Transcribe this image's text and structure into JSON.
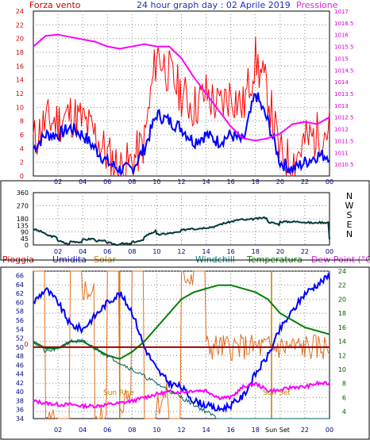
{
  "header": {
    "left_label": "Forza vento",
    "title": "24 hour graph day : 02 Aprile 2019",
    "right_label": "Pressione"
  },
  "labels": {
    "sun_rise": "Sun Rise",
    "sun_set": "Sun Set",
    "sun_set_axis": "Sun Set"
  },
  "legend": [
    {
      "key": "pioggia",
      "label": "Pioggia",
      "color": "#d00000"
    },
    {
      "key": "umidita",
      "label": "Umidita",
      "color": "#2020c0"
    },
    {
      "key": "solar",
      "label": "Solar",
      "color": "#c08000"
    },
    {
      "key": "windchill",
      "label": "Windchill",
      "color": "#008080"
    },
    {
      "key": "temperatura",
      "label": "Temperatura",
      "color": "#008000"
    },
    {
      "key": "dewpoint",
      "label": "Dew Point (°C)",
      "color": "#e020e0"
    }
  ],
  "colors": {
    "wind_speed": "#ff0000",
    "wind_avg": "#0000ff",
    "pressure": "#ff00ff",
    "direction": "#003838",
    "humidity": "#0000ff",
    "temperature": "#008000",
    "dewpoint": "#ff00ff",
    "solar": "#e07020",
    "rain": "#a00000",
    "windchill": "#006060",
    "sun_marker": "#c08000"
  },
  "chart_data": [
    {
      "type": "line",
      "title": "24 hour graph day : 02 Aprile 2019",
      "x_ticks": [
        "02",
        "04",
        "06",
        "08",
        "10",
        "12",
        "14",
        "16",
        "18",
        "20",
        "22",
        "00"
      ],
      "left_axis": {
        "name": "Forza vento",
        "ylim": [
          0,
          24
        ],
        "ticks": [
          "0",
          "2",
          "4",
          "6",
          "8",
          "10",
          "12",
          "14",
          "16",
          "18",
          "20",
          "22",
          "24"
        ]
      },
      "right_axis": {
        "name": "Pressione",
        "ylim": [
          1010,
          1017
        ],
        "ticks": [
          "1010.5",
          "1011",
          "1011.5",
          "1012",
          "1012.5",
          "1013",
          "1013.5",
          "1014",
          "1014.5",
          "1015",
          "1015.5",
          "1016",
          "1016.5",
          "1017"
        ]
      },
      "series": [
        {
          "name": "Forza vento",
          "axis": "left",
          "hours": [
            0,
            1,
            2,
            3,
            4,
            5,
            6,
            7,
            8,
            9,
            10,
            11,
            12,
            13,
            14,
            15,
            16,
            17,
            18,
            19,
            20,
            21,
            22,
            23,
            24
          ],
          "values": [
            5,
            8,
            8,
            9,
            8,
            6,
            3,
            1,
            2,
            5,
            18,
            15,
            12,
            10,
            12,
            10,
            12,
            10,
            17,
            12,
            3,
            2,
            5,
            6,
            7
          ]
        },
        {
          "name": "Wind average",
          "axis": "left",
          "hours": [
            0,
            1,
            2,
            3,
            4,
            5,
            6,
            7,
            8,
            9,
            10,
            11,
            12,
            13,
            14,
            15,
            16,
            17,
            18,
            19,
            20,
            21,
            22,
            23,
            24
          ],
          "values": [
            4,
            6,
            6,
            7,
            6,
            4,
            2,
            1,
            1,
            4,
            9,
            8,
            7,
            5,
            6,
            5,
            6,
            5,
            12,
            8,
            2,
            1,
            2,
            3,
            3
          ]
        },
        {
          "name": "Pressione",
          "axis": "right",
          "hours": [
            0,
            1,
            2,
            3,
            4,
            5,
            6,
            7,
            8,
            9,
            10,
            11,
            12,
            13,
            14,
            15,
            16,
            17,
            18,
            19,
            20,
            21,
            22,
            23,
            24
          ],
          "values": [
            1015.5,
            1015.95,
            1016,
            1015.9,
            1015.8,
            1015.7,
            1015.5,
            1015.4,
            1015.5,
            1015.6,
            1015.5,
            1015.5,
            1015,
            1014.2,
            1013.5,
            1012.8,
            1012.1,
            1011.6,
            1011.5,
            1011.6,
            1011.8,
            1012.2,
            1012.3,
            1012.2,
            1012.5
          ]
        }
      ]
    },
    {
      "type": "line",
      "x_ticks": [
        "02",
        "04",
        "06",
        "08",
        "10",
        "12",
        "14",
        "16",
        "18",
        "20",
        "22",
        "00"
      ],
      "left_axis": {
        "ylim": [
          0,
          360
        ],
        "ticks": [
          "0",
          "45",
          "90",
          "135",
          "180",
          "225",
          "270",
          "315",
          "360"
        ]
      },
      "right_axis": {
        "labels": [
          "N",
          "W",
          "S",
          "E",
          "N"
        ]
      },
      "series": [
        {
          "name": "Direzione",
          "hours": [
            0,
            0.5,
            1,
            2,
            3,
            4,
            5,
            6,
            7,
            8,
            9,
            10,
            11,
            12,
            13,
            14,
            15,
            16,
            17,
            18,
            19,
            20,
            21,
            22,
            23,
            23.5,
            24
          ],
          "values": [
            110,
            80,
            60,
            30,
            25,
            35,
            30,
            15,
            10,
            20,
            60,
            70,
            80,
            100,
            110,
            120,
            140,
            160,
            170,
            180,
            160,
            160,
            160,
            155,
            155,
            40,
            60
          ]
        }
      ]
    },
    {
      "type": "line",
      "x_ticks": [
        "02",
        "04",
        "06",
        "08",
        "10",
        "12",
        "14",
        "16",
        "18",
        "20",
        "22",
        "00"
      ],
      "left_axis": {
        "ylim": [
          34,
          67
        ],
        "ticks": [
          "34",
          "36",
          "38",
          "40",
          "42",
          "44",
          "46",
          "48",
          "50",
          "52",
          "54",
          "56",
          "58",
          "60",
          "62",
          "64",
          "66"
        ]
      },
      "right_axis": {
        "ylim": [
          3,
          24
        ],
        "ticks": [
          "4",
          "6",
          "8",
          "10",
          "12",
          "14",
          "16",
          "18",
          "20",
          "22",
          "24"
        ]
      },
      "series": [
        {
          "name": "Umidita",
          "axis": "left",
          "hours": [
            0,
            1,
            2,
            3,
            4,
            5,
            6,
            7,
            8,
            9,
            10,
            11,
            12,
            13,
            14,
            15,
            16,
            17,
            18,
            19,
            20,
            21,
            22,
            23,
            24
          ],
          "values": [
            60,
            63,
            60,
            55,
            54,
            57,
            60,
            62,
            58,
            50,
            45,
            42,
            41,
            38,
            37,
            36,
            37,
            39,
            44,
            48,
            54,
            58,
            62,
            64,
            66
          ]
        },
        {
          "name": "Temperatura",
          "axis": "right",
          "hours": [
            0,
            1,
            2,
            3,
            4,
            5,
            6,
            7,
            8,
            9,
            10,
            11,
            12,
            13,
            14,
            15,
            16,
            17,
            18,
            19,
            20,
            21,
            22,
            23,
            24
          ],
          "values": [
            14,
            13,
            13,
            14,
            14,
            13,
            12,
            11.5,
            12.5,
            14,
            16,
            18,
            20,
            21,
            21.5,
            22,
            22,
            21.5,
            21,
            20,
            18,
            17,
            16,
            15.5,
            15
          ]
        },
        {
          "name": "Dew Point",
          "axis": "right",
          "hours": [
            0,
            1,
            2,
            3,
            4,
            5,
            6,
            7,
            8,
            9,
            10,
            11,
            12,
            13,
            14,
            15,
            16,
            17,
            18,
            19,
            20,
            21,
            22,
            23,
            24
          ],
          "values": [
            5.5,
            5.2,
            5,
            5,
            4.8,
            4.8,
            5,
            5.2,
            5.5,
            6,
            6.5,
            6.8,
            6.8,
            7,
            7,
            6,
            6,
            7.5,
            8,
            7,
            7,
            7.5,
            7.5,
            8,
            8
          ]
        },
        {
          "name": "Windchill",
          "axis": "right",
          "hours": [
            0,
            1,
            2,
            3,
            4,
            5
          ],
          "values": [
            14,
            12.5,
            13,
            14,
            14,
            13
          ]
        },
        {
          "name": "Solar",
          "axis": "left",
          "hours": [
            7,
            7.5,
            8,
            9,
            10,
            11,
            12,
            13,
            14,
            15,
            16,
            17,
            18,
            18.5,
            19,
            19.2
          ],
          "values": [
            67,
            52,
            55,
            60,
            57,
            56,
            60,
            55,
            58,
            50,
            55,
            58,
            66,
            66,
            50,
            50
          ]
        },
        {
          "name": "Pioggia",
          "axis": "left",
          "hours": [
            0,
            24
          ],
          "values": [
            50,
            50
          ]
        }
      ],
      "sun_rise_hour": 7,
      "sun_set_hour": 19.3
    }
  ]
}
